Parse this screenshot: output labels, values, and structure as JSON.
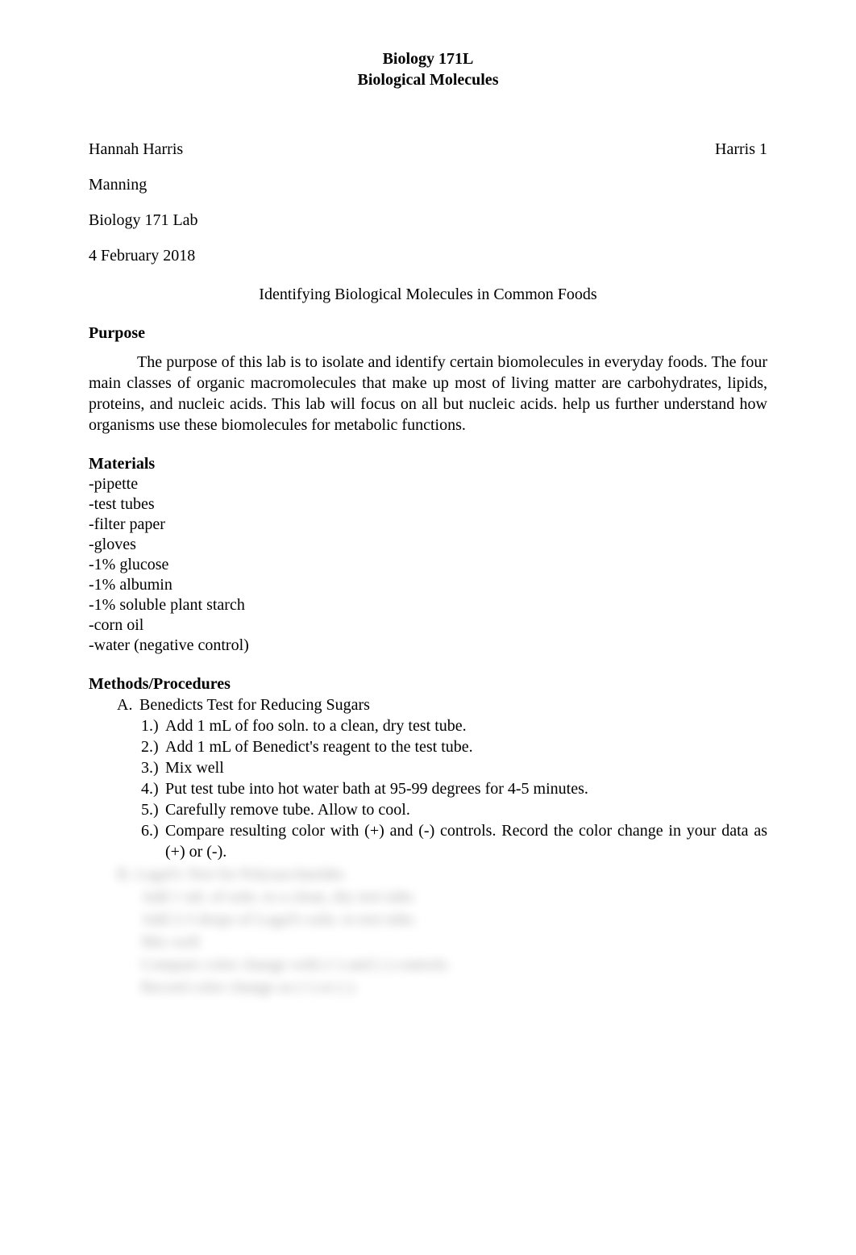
{
  "header": {
    "course": "Biology 171L",
    "subtitle": "Biological Molecules"
  },
  "info": {
    "student": "Hannah Harris",
    "page_label": "Harris 1",
    "instructor": "Manning",
    "course_line": "Biology 171 Lab",
    "date": "4 February 2018",
    "title": "Identifying Biological Molecules in Common Foods"
  },
  "purpose": {
    "heading": "Purpose",
    "text": "The purpose of this lab is to isolate and identify certain biomolecules in everyday foods. The four main classes of organic macromolecules that make up most of living matter are carbohydrates, lipids, proteins, and nucleic acids. This lab will focus on all but nucleic acids. help us further understand how organisms use these biomolecules for metabolic functions."
  },
  "materials": {
    "heading": "Materials",
    "items": [
      "-pipette",
      "-test tubes",
      "-filter paper",
      "-gloves",
      "-1% glucose",
      "-1% albumin",
      "-1% soluble plant starch",
      "-corn oil",
      "-water (negative control)"
    ]
  },
  "methods": {
    "heading": "Methods/Procedures",
    "section_a": {
      "marker": "A.",
      "label": "Benedicts Test for Reducing Sugars",
      "steps": [
        {
          "marker": "1.)",
          "text": "Add 1 mL of foo soln. to a clean, dry test tube."
        },
        {
          "marker": "2.)",
          "text": "Add 1 mL of Benedict's reagent to the test tube."
        },
        {
          "marker": "3.)",
          "text": "Mix well"
        },
        {
          "marker": "4.)",
          "text": "Put test tube into hot water bath at 95-99 degrees for 4-5 minutes."
        },
        {
          "marker": "5.)",
          "text": "Carefully remove tube. Allow to cool."
        },
        {
          "marker": "6.)",
          "text": "Compare resulting color with (+) and (-) controls. Record the color change in your data as (+) or (-)."
        }
      ]
    },
    "section_b_blurred": {
      "marker": "B.",
      "label": "Lugol's Test for Polysaccharides",
      "steps": [
        "Add 1 mL of soln. to a clean, dry test tube.",
        "Add 2-3 drops of Lugol's soln. to test tube.",
        "Mix well",
        "Compare color change with (+) and (-) controls.",
        "Record color change as (+) or (-)."
      ]
    }
  },
  "colors": {
    "background": "#ffffff",
    "text": "#000000",
    "blur_text": "#9a9a9a"
  },
  "typography": {
    "font_family": "Times New Roman",
    "body_fontsize": 20,
    "header_fontsize": 20,
    "header_weight": "bold"
  }
}
